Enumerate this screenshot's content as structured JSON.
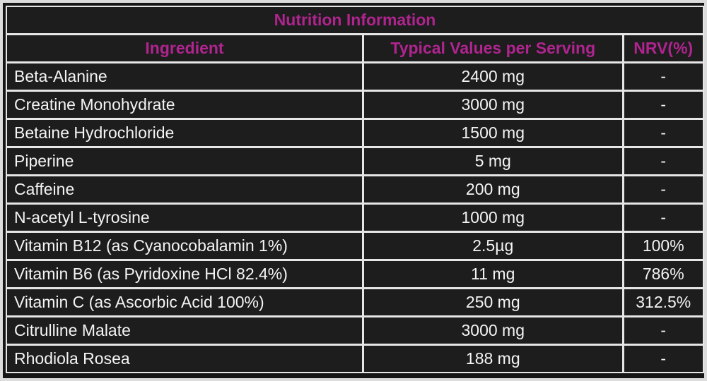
{
  "table": {
    "title": "Nutrition Information",
    "headers": {
      "ingredient": "Ingredient",
      "typical": "Typical Values per Serving",
      "nrv": "NRV(%)"
    },
    "rows": [
      {
        "ingredient": "Beta-Alanine",
        "value": "2400 mg",
        "nrv": "-"
      },
      {
        "ingredient": "Creatine Monohydrate",
        "value": "3000 mg",
        "nrv": "-"
      },
      {
        "ingredient": "Betaine Hydrochloride",
        "value": "1500 mg",
        "nrv": "-"
      },
      {
        "ingredient": "Piperine",
        "value": "5 mg",
        "nrv": "-"
      },
      {
        "ingredient": "Caffeine",
        "value": "200 mg",
        "nrv": "-"
      },
      {
        "ingredient": "N-acetyl L-tyrosine",
        "value": "1000 mg",
        "nrv": "-"
      },
      {
        "ingredient": "Vitamin B12 (as Cyanocobalamin 1%)",
        "value": "2.5µg",
        "nrv": "100%"
      },
      {
        "ingredient": "Vitamin B6 (as Pyridoxine HCl 82.4%)",
        "value": "11 mg",
        "nrv": "786%"
      },
      {
        "ingredient": "Vitamin C (as Ascorbic Acid 100%)",
        "value": "250 mg",
        "nrv": "312.5%"
      },
      {
        "ingredient": "Citrulline Malate",
        "value": "3000 mg",
        "nrv": "-"
      },
      {
        "ingredient": "Rhodiola Rosea",
        "value": "188 mg",
        "nrv": "-"
      }
    ]
  },
  "colors": {
    "accent": "#b0248f",
    "background": "#1d1d1d",
    "text": "#f4f4f4",
    "border": "#e6e6e6"
  }
}
